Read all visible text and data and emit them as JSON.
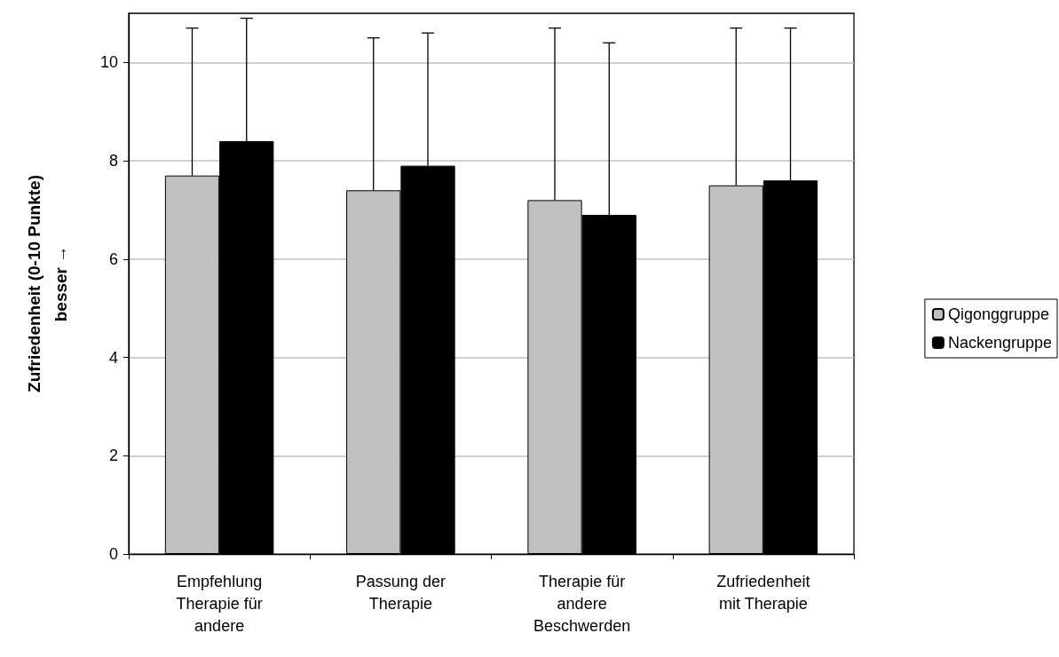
{
  "chart_data": {
    "type": "bar",
    "ylabel": "Zufriedenheit (0-10 Punkte)\nbesser →",
    "categories": [
      "Empfehlung\nTherapie für\nandere",
      "Passung der\nTherapie",
      "Therapie für\nandere\nBeschwerden",
      "Zufriedenheit\nmit Therapie"
    ],
    "series": [
      {
        "name": "Qigonggruppe",
        "color": "#c0c0c0",
        "values": [
          7.7,
          7.4,
          7.2,
          7.5
        ],
        "errors": [
          [
            7.7,
            10.7
          ],
          [
            7.4,
            10.5
          ],
          [
            7.2,
            10.7
          ],
          [
            7.5,
            10.7
          ]
        ]
      },
      {
        "name": "Nackengruppe",
        "color": "#000000",
        "values": [
          8.4,
          7.9,
          6.9,
          7.6
        ],
        "errors": [
          [
            8.4,
            10.9
          ],
          [
            7.9,
            10.6
          ],
          [
            6.9,
            10.4
          ],
          [
            7.6,
            10.7
          ]
        ]
      }
    ],
    "ylim": [
      0,
      11
    ],
    "yticks": [
      0,
      2,
      4,
      6,
      8,
      10
    ],
    "grid": "y",
    "legend": "right"
  }
}
